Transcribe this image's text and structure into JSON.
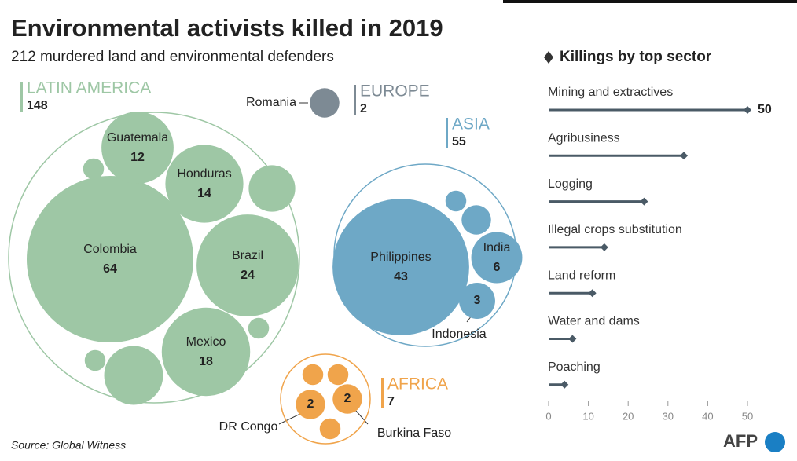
{
  "chart_data": [
    {
      "type": "packed-circle",
      "title": "Environmental activists killed in 2019",
      "subtitle": "212 murdered land and environmental defenders",
      "groups": [
        {
          "name": "LATIN AMERICA",
          "value": 148,
          "color": "#9ec7a5",
          "items": [
            {
              "name": "Colombia",
              "value": 64
            },
            {
              "name": "Guatemala",
              "value": 12
            },
            {
              "name": "Honduras",
              "value": 14
            },
            {
              "name": "Brazil",
              "value": 24
            },
            {
              "name": "Mexico",
              "value": 18
            },
            {
              "value": 1
            },
            {
              "value": 5
            },
            {
              "value": 1
            },
            {
              "value": 8
            },
            {
              "value": 1
            }
          ]
        },
        {
          "name": "EUROPE",
          "value": 2,
          "color": "#7d8a94",
          "items": [
            {
              "name": "Romania",
              "value": 2
            }
          ]
        },
        {
          "name": "ASIA",
          "value": 55,
          "color": "#6ea8c6",
          "items": [
            {
              "name": "Philippines",
              "value": 43
            },
            {
              "name": "India",
              "value": 6
            },
            {
              "name": "Indonesia",
              "value": 3
            },
            {
              "value": 1
            },
            {
              "value": 2
            }
          ]
        },
        {
          "name": "AFRICA",
          "value": 7,
          "color": "#f0a44b",
          "items": [
            {
              "name": "DR Congo",
              "value": 2
            },
            {
              "name": "Burkina Faso",
              "value": 2
            },
            {
              "value": 1
            },
            {
              "value": 1
            },
            {
              "value": 1
            }
          ]
        }
      ],
      "source": "Source: Global Witness",
      "logo": "AFP"
    },
    {
      "type": "lollipop",
      "title": "Killings by top sector",
      "categories": [
        "Mining and extractives",
        "Agribusiness",
        "Logging",
        "Illegal crops substitution",
        "Land reform",
        "Water and dams",
        "Poaching"
      ],
      "values": [
        50,
        34,
        24,
        14,
        11,
        6,
        4
      ],
      "value_labels": [
        "50",
        null,
        null,
        null,
        null,
        null,
        null
      ],
      "color": "#4a5a66",
      "xlim": [
        0,
        50
      ],
      "xticks": [
        0,
        10,
        20,
        30,
        40,
        50
      ]
    }
  ]
}
